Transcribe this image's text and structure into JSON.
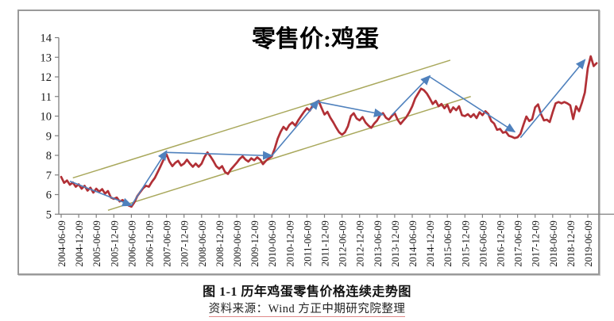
{
  "figure": {
    "caption": "图 1-1 历年鸡蛋零售价格连续走势图",
    "source": "资料来源：Wind  方正中期研究院整理"
  },
  "colors": {
    "price_line": "#b13036",
    "trend_arrow": "#4f81bd",
    "channel_line": "#a9a85c",
    "axis": "#7f7f7f",
    "tick_text": "#1a1a1a",
    "figure_border": "#9a9a9a",
    "source_underline": "#cd3c3c"
  },
  "chart_data": {
    "type": "line",
    "title": "零售价:鸡蛋",
    "xlabel": "",
    "ylabel": "",
    "ylim": [
      5,
      14
    ],
    "grid": false,
    "legend_position": "none",
    "y_ticks": [
      5,
      6,
      7,
      8,
      9,
      10,
      11,
      12,
      13,
      14
    ],
    "x_tick_interval_months": 6,
    "x_tick_labels": [
      "2004-06-09",
      "2004-12-09",
      "2005-06-09",
      "2005-12-09",
      "2006-06-09",
      "2006-12-09",
      "2007-06-09",
      "2007-12-09",
      "2008-06-09",
      "2008-12-09",
      "2009-06-09",
      "2009-12-09",
      "2010-06-09",
      "2010-12-09",
      "2011-06-09",
      "2011-12-09",
      "2012-06-09",
      "2012-12-09",
      "2013-06-09",
      "2013-12-09",
      "2014-06-09",
      "2014-12-09",
      "2015-06-09",
      "2015-12-09",
      "2016-06-09",
      "2016-12-09",
      "2017-06-09",
      "2017-12-09",
      "2018-06-09",
      "2018-12-09",
      "2019-06-09"
    ],
    "series": [
      {
        "name": "零售价:鸡蛋",
        "points": [
          [
            "2004-06",
            6.9
          ],
          [
            "2004-07",
            6.6
          ],
          [
            "2004-08",
            6.72
          ],
          [
            "2004-09",
            6.5
          ],
          [
            "2004-10",
            6.62
          ],
          [
            "2004-11",
            6.4
          ],
          [
            "2004-12",
            6.52
          ],
          [
            "2005-01",
            6.3
          ],
          [
            "2005-02",
            6.45
          ],
          [
            "2005-03",
            6.2
          ],
          [
            "2005-04",
            6.35
          ],
          [
            "2005-05",
            6.1
          ],
          [
            "2005-06",
            6.3
          ],
          [
            "2005-07",
            6.15
          ],
          [
            "2005-08",
            6.28
          ],
          [
            "2005-09",
            6.05
          ],
          [
            "2005-10",
            6.18
          ],
          [
            "2005-11",
            5.85
          ],
          [
            "2005-12",
            5.78
          ],
          [
            "2006-01",
            5.85
          ],
          [
            "2006-02",
            5.65
          ],
          [
            "2006-03",
            5.72
          ],
          [
            "2006-04",
            5.55
          ],
          [
            "2006-05",
            5.45
          ],
          [
            "2006-06",
            5.38
          ],
          [
            "2006-07",
            5.6
          ],
          [
            "2006-08",
            5.92
          ],
          [
            "2006-09",
            6.12
          ],
          [
            "2006-10",
            6.32
          ],
          [
            "2006-11",
            6.45
          ],
          [
            "2006-12",
            6.4
          ],
          [
            "2007-01",
            6.65
          ],
          [
            "2007-02",
            6.85
          ],
          [
            "2007-03",
            7.15
          ],
          [
            "2007-04",
            7.45
          ],
          [
            "2007-05",
            7.78
          ],
          [
            "2007-06",
            8.05
          ],
          [
            "2007-07",
            7.68
          ],
          [
            "2007-08",
            7.45
          ],
          [
            "2007-09",
            7.62
          ],
          [
            "2007-10",
            7.72
          ],
          [
            "2007-11",
            7.48
          ],
          [
            "2007-12",
            7.58
          ],
          [
            "2008-01",
            7.78
          ],
          [
            "2008-02",
            7.58
          ],
          [
            "2008-03",
            7.42
          ],
          [
            "2008-04",
            7.58
          ],
          [
            "2008-05",
            7.42
          ],
          [
            "2008-06",
            7.58
          ],
          [
            "2008-07",
            7.92
          ],
          [
            "2008-08",
            8.15
          ],
          [
            "2008-09",
            7.95
          ],
          [
            "2008-10",
            7.72
          ],
          [
            "2008-11",
            7.45
          ],
          [
            "2008-12",
            7.32
          ],
          [
            "2009-01",
            7.45
          ],
          [
            "2009-02",
            7.15
          ],
          [
            "2009-03",
            7.05
          ],
          [
            "2009-04",
            7.28
          ],
          [
            "2009-05",
            7.45
          ],
          [
            "2009-06",
            7.62
          ],
          [
            "2009-07",
            7.82
          ],
          [
            "2009-08",
            7.95
          ],
          [
            "2009-09",
            7.78
          ],
          [
            "2009-10",
            7.68
          ],
          [
            "2009-11",
            7.85
          ],
          [
            "2009-12",
            7.75
          ],
          [
            "2010-01",
            7.9
          ],
          [
            "2010-02",
            7.78
          ],
          [
            "2010-03",
            7.55
          ],
          [
            "2010-04",
            7.72
          ],
          [
            "2010-05",
            7.85
          ],
          [
            "2010-06",
            7.95
          ],
          [
            "2010-07",
            8.35
          ],
          [
            "2010-08",
            8.85
          ],
          [
            "2010-09",
            9.2
          ],
          [
            "2010-10",
            9.45
          ],
          [
            "2010-11",
            9.3
          ],
          [
            "2010-12",
            9.55
          ],
          [
            "2011-01",
            9.68
          ],
          [
            "2011-02",
            9.52
          ],
          [
            "2011-03",
            9.78
          ],
          [
            "2011-04",
            10.0
          ],
          [
            "2011-05",
            10.22
          ],
          [
            "2011-06",
            10.4
          ],
          [
            "2011-07",
            10.28
          ],
          [
            "2011-08",
            10.55
          ],
          [
            "2011-09",
            10.7
          ],
          [
            "2011-10",
            10.78
          ],
          [
            "2011-11",
            10.42
          ],
          [
            "2011-12",
            10.08
          ],
          [
            "2012-01",
            10.22
          ],
          [
            "2012-02",
            9.92
          ],
          [
            "2012-03",
            9.68
          ],
          [
            "2012-04",
            9.42
          ],
          [
            "2012-05",
            9.18
          ],
          [
            "2012-06",
            9.05
          ],
          [
            "2012-07",
            9.18
          ],
          [
            "2012-08",
            9.48
          ],
          [
            "2012-09",
            10.0
          ],
          [
            "2012-10",
            10.15
          ],
          [
            "2012-11",
            9.88
          ],
          [
            "2012-12",
            9.78
          ],
          [
            "2013-01",
            9.95
          ],
          [
            "2013-02",
            9.68
          ],
          [
            "2013-03",
            9.52
          ],
          [
            "2013-04",
            9.4
          ],
          [
            "2013-05",
            9.62
          ],
          [
            "2013-06",
            9.78
          ],
          [
            "2013-07",
            10.05
          ],
          [
            "2013-08",
            10.15
          ],
          [
            "2013-09",
            9.92
          ],
          [
            "2013-10",
            9.82
          ],
          [
            "2013-11",
            10.0
          ],
          [
            "2013-12",
            10.15
          ],
          [
            "2014-01",
            9.82
          ],
          [
            "2014-02",
            9.6
          ],
          [
            "2014-03",
            9.78
          ],
          [
            "2014-04",
            9.95
          ],
          [
            "2014-05",
            10.2
          ],
          [
            "2014-06",
            10.5
          ],
          [
            "2014-07",
            10.9
          ],
          [
            "2014-08",
            11.15
          ],
          [
            "2014-09",
            11.4
          ],
          [
            "2014-10",
            11.32
          ],
          [
            "2014-11",
            11.15
          ],
          [
            "2014-12",
            10.9
          ],
          [
            "2015-01",
            10.62
          ],
          [
            "2015-02",
            10.78
          ],
          [
            "2015-03",
            10.5
          ],
          [
            "2015-04",
            10.62
          ],
          [
            "2015-05",
            10.4
          ],
          [
            "2015-06",
            10.58
          ],
          [
            "2015-07",
            10.2
          ],
          [
            "2015-08",
            10.45
          ],
          [
            "2015-09",
            10.3
          ],
          [
            "2015-10",
            10.5
          ],
          [
            "2015-11",
            10.05
          ],
          [
            "2015-12",
            10.0
          ],
          [
            "2016-01",
            10.1
          ],
          [
            "2016-02",
            9.95
          ],
          [
            "2016-03",
            10.1
          ],
          [
            "2016-04",
            9.9
          ],
          [
            "2016-05",
            10.2
          ],
          [
            "2016-06",
            10.05
          ],
          [
            "2016-07",
            10.25
          ],
          [
            "2016-08",
            10.1
          ],
          [
            "2016-09",
            9.75
          ],
          [
            "2016-10",
            9.62
          ],
          [
            "2016-11",
            9.3
          ],
          [
            "2016-12",
            9.35
          ],
          [
            "2017-01",
            9.15
          ],
          [
            "2017-02",
            9.2
          ],
          [
            "2017-03",
            9.0
          ],
          [
            "2017-04",
            8.95
          ],
          [
            "2017-05",
            8.88
          ],
          [
            "2017-06",
            8.92
          ],
          [
            "2017-07",
            9.1
          ],
          [
            "2017-08",
            9.56
          ],
          [
            "2017-09",
            9.98
          ],
          [
            "2017-10",
            9.75
          ],
          [
            "2017-11",
            9.85
          ],
          [
            "2017-12",
            10.45
          ],
          [
            "2018-01",
            10.6
          ],
          [
            "2018-02",
            10.1
          ],
          [
            "2018-03",
            9.78
          ],
          [
            "2018-04",
            9.82
          ],
          [
            "2018-05",
            9.7
          ],
          [
            "2018-06",
            10.2
          ],
          [
            "2018-07",
            10.65
          ],
          [
            "2018-08",
            10.72
          ],
          [
            "2018-09",
            10.65
          ],
          [
            "2018-10",
            10.72
          ],
          [
            "2018-11",
            10.65
          ],
          [
            "2018-12",
            10.55
          ],
          [
            "2019-01",
            9.85
          ],
          [
            "2019-02",
            10.5
          ],
          [
            "2019-03",
            10.25
          ],
          [
            "2019-04",
            10.68
          ],
          [
            "2019-05",
            11.2
          ],
          [
            "2019-06",
            12.45
          ],
          [
            "2019-07",
            13.05
          ],
          [
            "2019-08",
            12.55
          ],
          [
            "2019-09",
            12.7
          ]
        ]
      }
    ],
    "annotations": {
      "trend_arrows": [
        [
          "2004-09",
          6.68,
          "2006-06",
          5.45
        ],
        [
          "2006-06",
          5.45,
          "2007-06",
          8.22
        ],
        [
          "2007-06",
          8.15,
          "2010-06",
          7.98
        ],
        [
          "2010-06",
          7.98,
          "2011-10",
          10.8
        ],
        [
          "2011-10",
          10.72,
          "2013-08",
          10.08
        ],
        [
          "2013-11",
          10.05,
          "2014-12",
          12.05
        ],
        [
          "2014-12",
          12.0,
          "2017-05",
          9.2
        ],
        [
          "2017-07",
          8.9,
          "2019-05",
          12.87
        ]
      ],
      "channel_lines": [
        [
          "2004-10",
          6.85,
          "2015-07",
          12.85
        ],
        [
          "2005-10",
          5.2,
          "2016-02",
          11.0
        ]
      ]
    }
  }
}
